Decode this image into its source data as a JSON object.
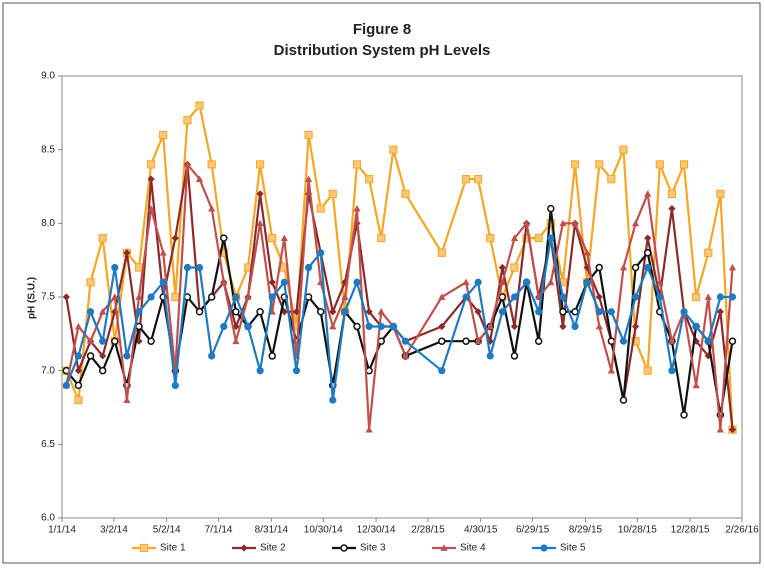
{
  "chart_data": {
    "type": "line",
    "title": "Figure 8",
    "subtitle": "Distribution System pH Levels",
    "y_label": "pH (S.U.)",
    "x": [
      "1/6/14",
      "1/20/14",
      "2/3/14",
      "2/17/14",
      "3/3/14",
      "3/17/14",
      "3/31/14",
      "4/14/14",
      "4/28/14",
      "5/12/14",
      "5/26/14",
      "6/9/14",
      "6/23/14",
      "7/7/14",
      "7/21/14",
      "8/4/14",
      "8/18/14",
      "9/1/14",
      "9/15/14",
      "9/29/14",
      "10/13/14",
      "10/27/14",
      "11/10/14",
      "11/24/14",
      "12/8/14",
      "12/22/14",
      "1/5/15",
      "1/19/15",
      "2/2/15",
      "3/16/15",
      "4/13/15",
      "4/27/15",
      "5/11/15",
      "5/25/15",
      "6/8/15",
      "6/22/15",
      "7/6/15",
      "7/20/15",
      "8/3/15",
      "8/17/15",
      "8/31/15",
      "9/14/15",
      "9/28/15",
      "10/12/15",
      "10/26/15",
      "11/9/15",
      "11/23/15",
      "12/7/15",
      "12/21/15",
      "1/4/16",
      "1/18/16",
      "2/1/16",
      "2/15/16"
    ],
    "series": [
      {
        "name": "Site 1",
        "color": "#f5a623",
        "marker": "square",
        "values": [
          7.0,
          6.8,
          7.6,
          7.9,
          7.2,
          7.8,
          7.7,
          8.4,
          8.6,
          7.5,
          8.7,
          8.8,
          8.4,
          7.8,
          7.5,
          7.7,
          8.4,
          7.9,
          7.7,
          7.3,
          8.6,
          8.1,
          8.2,
          7.4,
          8.4,
          8.3,
          7.9,
          8.5,
          8.2,
          7.8,
          8.3,
          8.3,
          7.9,
          7.5,
          7.7,
          7.9,
          7.9,
          8.0,
          7.6,
          8.4,
          7.6,
          8.4,
          8.3,
          8.5,
          7.2,
          7.0,
          8.4,
          8.2,
          8.4,
          7.5,
          7.8,
          8.2,
          6.6
        ]
      },
      {
        "name": "Site 2",
        "color": "#8b2a2a",
        "marker": "diamond",
        "values": [
          7.5,
          7.0,
          7.2,
          7.1,
          7.4,
          7.8,
          7.2,
          8.3,
          7.5,
          7.9,
          8.4,
          7.4,
          7.5,
          7.6,
          7.3,
          7.5,
          8.2,
          7.6,
          7.4,
          7.4,
          8.2,
          7.8,
          7.4,
          7.6,
          8.0,
          7.4,
          7.3,
          7.3,
          7.2,
          7.3,
          7.5,
          7.4,
          7.2,
          7.7,
          7.3,
          8.0,
          7.5,
          7.9,
          7.3,
          8.0,
          7.7,
          7.5,
          7.2,
          6.8,
          7.3,
          7.9,
          7.5,
          8.1,
          7.4,
          7.2,
          7.1,
          7.4,
          6.6
        ]
      },
      {
        "name": "Site 3",
        "color": "#111111",
        "marker": "circle-open",
        "values": [
          7.0,
          6.9,
          7.1,
          7.0,
          7.2,
          6.9,
          7.3,
          7.2,
          7.5,
          7.0,
          7.5,
          7.4,
          7.5,
          7.9,
          7.4,
          7.3,
          7.4,
          7.1,
          7.5,
          7.2,
          7.5,
          7.4,
          6.9,
          7.4,
          7.3,
          7.0,
          7.2,
          7.3,
          7.1,
          7.2,
          7.2,
          7.2,
          7.3,
          7.5,
          7.1,
          7.6,
          7.2,
          8.1,
          7.4,
          7.4,
          7.6,
          7.7,
          7.2,
          6.8,
          7.7,
          7.8,
          7.4,
          7.2,
          6.7,
          7.3,
          7.2,
          6.7,
          7.2
        ]
      },
      {
        "name": "Site 4",
        "color": "#c0504d",
        "marker": "triangle",
        "values": [
          6.9,
          7.3,
          7.2,
          7.4,
          7.5,
          6.8,
          7.5,
          8.1,
          7.8,
          7.0,
          8.4,
          8.3,
          8.1,
          7.6,
          7.2,
          7.5,
          8.0,
          7.4,
          7.9,
          7.1,
          8.3,
          7.6,
          7.3,
          7.5,
          8.1,
          6.6,
          7.4,
          7.3,
          7.1,
          7.5,
          7.6,
          7.2,
          7.3,
          7.6,
          7.9,
          8.0,
          7.5,
          7.6,
          8.0,
          8.0,
          7.8,
          7.3,
          7.0,
          7.7,
          8.0,
          8.2,
          7.6,
          7.2,
          7.4,
          6.9,
          7.5,
          6.6,
          7.7
        ]
      },
      {
        "name": "Site 5",
        "color": "#1f7bc1",
        "marker": "circle",
        "values": [
          6.9,
          7.1,
          7.4,
          7.2,
          7.7,
          7.1,
          7.4,
          7.5,
          7.6,
          6.9,
          7.7,
          7.7,
          7.1,
          7.3,
          7.5,
          7.3,
          7.0,
          7.5,
          7.6,
          7.0,
          7.7,
          7.8,
          6.8,
          7.4,
          7.6,
          7.3,
          7.3,
          7.3,
          7.2,
          7.0,
          7.5,
          7.6,
          7.1,
          7.4,
          7.5,
          7.6,
          7.4,
          7.9,
          7.5,
          7.3,
          7.6,
          7.4,
          7.4,
          7.2,
          7.5,
          7.7,
          7.5,
          7.0,
          7.4,
          7.3,
          7.2,
          7.5,
          7.5
        ]
      }
    ],
    "xlim": [
      "1/1/14",
      "2/26/16"
    ],
    "xticks": [
      "1/1/14",
      "3/2/14",
      "5/2/14",
      "7/1/14",
      "8/31/14",
      "10/30/14",
      "12/30/14",
      "2/28/15",
      "4/30/15",
      "6/29/15",
      "8/29/15",
      "10/28/15",
      "12/28/15",
      "2/26/16"
    ],
    "ylim": [
      6,
      9
    ],
    "yticks": [
      {
        "value": 6,
        "label": "6.0"
      },
      6.5,
      {
        "value": 7,
        "label": "7.0"
      },
      7.5,
      {
        "value": 8,
        "label": "8.0"
      },
      8.5,
      {
        "value": 9,
        "label": "9.0"
      }
    ],
    "legend": "bottom"
  }
}
